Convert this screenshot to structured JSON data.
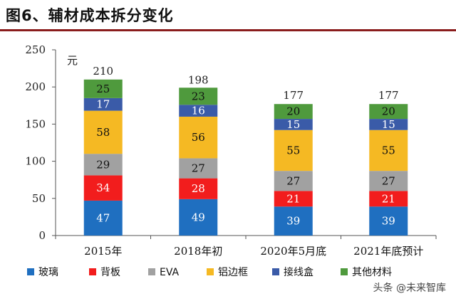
{
  "title": "图6、辅材成本拆分变化",
  "watermark": "头条 @未来智库",
  "chart_data": {
    "type": "bar",
    "stacked": true,
    "unit_label": "元",
    "ylim": [
      0,
      250
    ],
    "yticks": [
      0,
      50,
      100,
      150,
      200,
      250
    ],
    "categories": [
      "2015年",
      "2018年初",
      "2020年5月底",
      "2021年底预计"
    ],
    "totals": [
      210,
      198,
      177,
      177
    ],
    "series": [
      {
        "name": "玻璃",
        "color": "#1f6fc0",
        "label_color": "#ffffff",
        "values": [
          47,
          49,
          39,
          39
        ]
      },
      {
        "name": "背板",
        "color": "#f21d1d",
        "label_color": "#ffffff",
        "values": [
          34,
          28,
          21,
          21
        ]
      },
      {
        "name": "EVA",
        "color": "#a1a1a1",
        "label_color": "#111111",
        "values": [
          29,
          27,
          27,
          27
        ]
      },
      {
        "name": "铝边框",
        "color": "#f5b923",
        "label_color": "#111111",
        "values": [
          58,
          56,
          55,
          55
        ]
      },
      {
        "name": "接线盒",
        "color": "#3a5ba8",
        "label_color": "#ffffff",
        "values": [
          17,
          16,
          15,
          15
        ]
      },
      {
        "name": "其他材料",
        "color": "#4f9a3d",
        "label_color": "#111111",
        "values": [
          25,
          23,
          20,
          20
        ]
      }
    ],
    "legend_position": "bottom"
  }
}
